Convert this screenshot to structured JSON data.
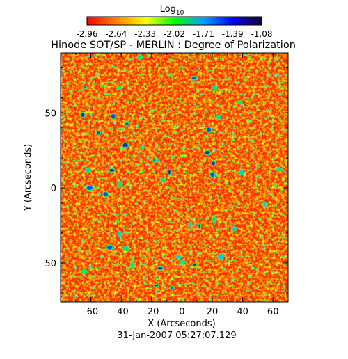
{
  "chart_data": {
    "type": "heatmap",
    "title": "Hinode SOT/SP - MERLIN : Degree of Polarization",
    "xlabel": "X (Arcseconds)",
    "ylabel": "Y (Arcseconds)",
    "footer": "31-Jan-2007 05:27:07.129",
    "xlim": [
      -80,
      70
    ],
    "ylim": [
      -76,
      90
    ],
    "x_ticks": [
      -60,
      -40,
      -20,
      0,
      20,
      40,
      60
    ],
    "y_ticks": [
      -50,
      0,
      50
    ],
    "colorbar": {
      "label_base": "Log",
      "label_sub": "10",
      "range": [
        -2.96,
        -1.08
      ],
      "ticks": [
        "-2.96",
        "-2.64",
        "-2.33",
        "-2.02",
        "-1.71",
        "-1.39",
        "-1.08"
      ],
      "colors": [
        "#ff0000",
        "#ff8000",
        "#ffff00",
        "#00ff00",
        "#00a0ff",
        "#0000ff",
        "#1a0030"
      ]
    },
    "dominant_color": "#ff2b00"
  }
}
